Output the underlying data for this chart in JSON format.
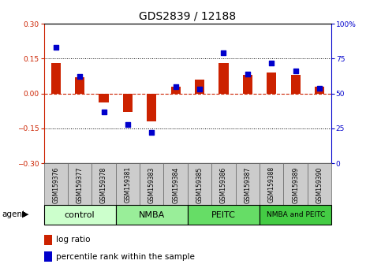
{
  "title": "GDS2839 / 12188",
  "samples": [
    "GSM159376",
    "GSM159377",
    "GSM159378",
    "GSM159381",
    "GSM159383",
    "GSM159384",
    "GSM159385",
    "GSM159386",
    "GSM159387",
    "GSM159388",
    "GSM159389",
    "GSM159390"
  ],
  "log_ratio": [
    0.13,
    0.07,
    -0.04,
    -0.08,
    -0.12,
    0.03,
    0.06,
    0.13,
    0.08,
    0.09,
    0.08,
    0.03
  ],
  "percentile_rank": [
    83,
    62,
    37,
    28,
    22,
    55,
    53,
    79,
    64,
    72,
    66,
    54
  ],
  "groups": [
    {
      "label": "control",
      "start": 0,
      "end": 3,
      "color": "#ccffcc"
    },
    {
      "label": "NMBA",
      "start": 3,
      "end": 6,
      "color": "#99ee99"
    },
    {
      "label": "PEITC",
      "start": 6,
      "end": 9,
      "color": "#66dd66"
    },
    {
      "label": "NMBA and PEITC",
      "start": 9,
      "end": 12,
      "color": "#44cc44"
    }
  ],
  "ylim_left": [
    -0.3,
    0.3
  ],
  "ylim_right": [
    0,
    100
  ],
  "yticks_left": [
    -0.3,
    -0.15,
    0.0,
    0.15,
    0.3
  ],
  "yticks_right": [
    0,
    25,
    50,
    75,
    100
  ],
  "hlines_dotted": [
    0.15,
    -0.15
  ],
  "bar_color": "#cc2200",
  "dot_color": "#0000cc",
  "zero_line_color": "#cc2200",
  "bar_width": 0.4,
  "dot_size": 22,
  "sample_box_color": "#cccccc",
  "sample_box_edge": "#888888",
  "agent_label": "agent",
  "legend_log_ratio": "log ratio",
  "legend_percentile": "percentile rank within the sample",
  "title_fontsize": 10,
  "tick_fontsize": 6.5,
  "sample_fontsize": 5.5,
  "group_label_fontsize": 8,
  "legend_fontsize": 7.5
}
